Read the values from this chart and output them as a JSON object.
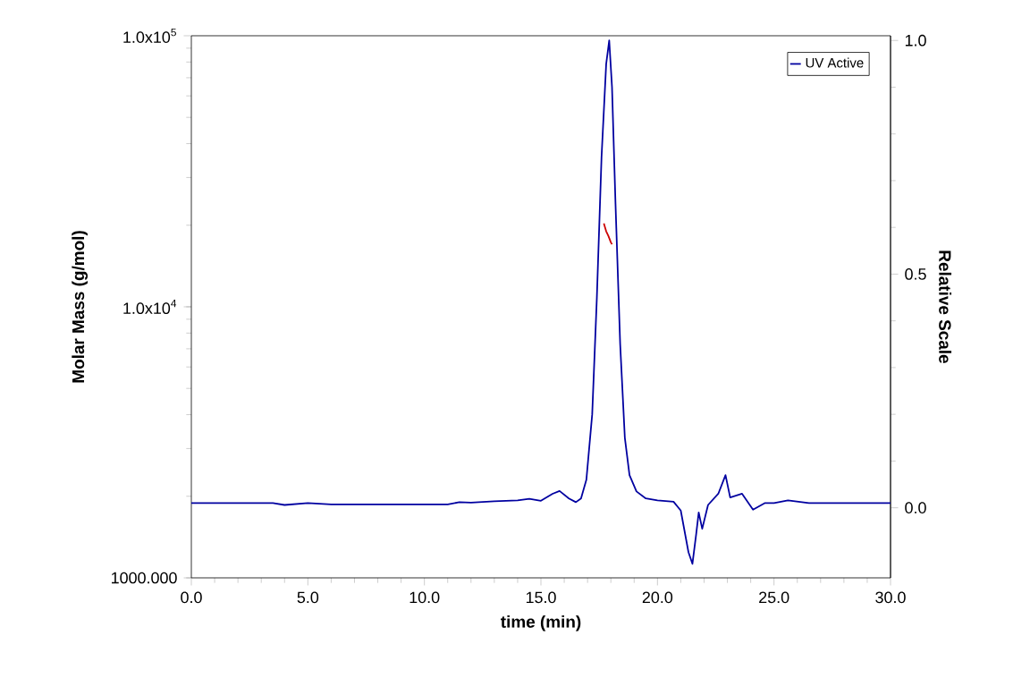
{
  "chart_data": {
    "type": "line",
    "xlabel": "time (min)",
    "ylabel": "Molar Mass (g/mol)",
    "y2label": "Relative Scale",
    "xlim": [
      0,
      30
    ],
    "xticks": [
      {
        "value": 0,
        "label": "0.0"
      },
      {
        "value": 5,
        "label": "5.0"
      },
      {
        "value": 10,
        "label": "10.0"
      },
      {
        "value": 15,
        "label": "15.0"
      },
      {
        "value": 20,
        "label": "20.0"
      },
      {
        "value": 25,
        "label": "25.0"
      },
      {
        "value": 30,
        "label": "30.0"
      }
    ],
    "ylim": [
      1000,
      100000
    ],
    "yticks": [
      {
        "value": 1000,
        "label": "1000.000"
      },
      {
        "value": 10000,
        "label": "1.0x10$^{4}$"
      },
      {
        "value": 100000,
        "label": "1.0x10$^{5}$"
      }
    ],
    "log": "y",
    "y2lim": [
      -0.15,
      1.01
    ],
    "y2ticks": [
      {
        "value": 0,
        "label": "0.0"
      },
      {
        "value": 0.5,
        "label": "0.5"
      },
      {
        "value": 1,
        "label": "1.0"
      }
    ],
    "legend": "top right",
    "series": [
      {
        "name": "UV Active",
        "color": "#0000a0",
        "axis": "y2",
        "x": [
          0,
          2,
          3.5,
          4,
          5,
          6,
          8,
          10,
          11,
          11.5,
          12,
          13,
          14,
          14.5,
          15,
          15.5,
          15.8,
          16.2,
          16.5,
          16.72,
          16.95,
          17.2,
          17.4,
          17.6,
          17.8,
          17.93,
          18.05,
          18.2,
          18.4,
          18.6,
          18.8,
          19.1,
          19.5,
          20,
          20.69,
          21.0,
          21.33,
          21.5,
          21.66,
          21.77,
          21.92,
          22.17,
          22.61,
          22.92,
          23.12,
          23.63,
          24.1,
          24.6,
          25.0,
          25.6,
          26.5,
          28,
          30
        ],
        "values": [
          0.01,
          0.01,
          0.01,
          0.006,
          0.01,
          0.007,
          0.007,
          0.007,
          0.007,
          0.012,
          0.011,
          0.014,
          0.016,
          0.019,
          0.015,
          0.03,
          0.036,
          0.02,
          0.012,
          0.02,
          0.06,
          0.2,
          0.45,
          0.75,
          0.95,
          1.0,
          0.9,
          0.65,
          0.35,
          0.15,
          0.07,
          0.035,
          0.02,
          0.016,
          0.013,
          -0.006,
          -0.095,
          -0.12,
          -0.057,
          -0.01,
          -0.045,
          0.006,
          0.03,
          0.07,
          0.022,
          0.03,
          -0.004,
          0.01,
          0.01,
          0.016,
          0.01,
          0.01,
          0.01
        ]
      },
      {
        "color": "#cc0000",
        "axis": "y",
        "x": [
          17.7,
          17.8,
          17.9,
          18.0,
          18.05
        ],
        "values": [
          20300,
          19000,
          18200,
          17300,
          17000
        ]
      }
    ]
  }
}
